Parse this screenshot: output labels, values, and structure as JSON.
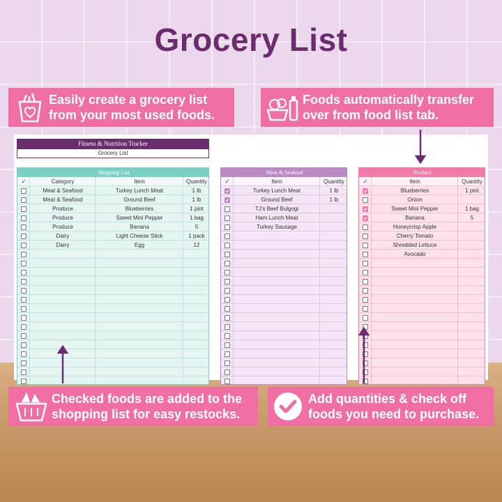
{
  "title": "Grocery List",
  "callouts": [
    {
      "lines": [
        "Easily create a grocery list",
        "from your most used foods."
      ]
    },
    {
      "lines": [
        "Foods automatically transfer",
        "over from food list tab."
      ]
    },
    {
      "lines": [
        "Checked foods are added to the",
        "shopping list for easy restocks."
      ]
    },
    {
      "lines": [
        "Add quantities & check off",
        "foods you need to purchase."
      ]
    }
  ],
  "sheet": {
    "header": "Fitness & Nutrition Tracker",
    "subheader": "Grocery List"
  },
  "tables": [
    {
      "title": "Shopping List",
      "columns": [
        "✓",
        "Category",
        "Item",
        "Quantity"
      ],
      "rows": [
        {
          "checked": false,
          "category": "Meat & Seafood",
          "item": "Turkey Lunch Meat",
          "quantity": "1 lb"
        },
        {
          "checked": false,
          "category": "Meat & Seafood",
          "item": "Ground Beef",
          "quantity": "1 lb"
        },
        {
          "checked": false,
          "category": "Produce",
          "item": "Blueberries",
          "quantity": "1 pint"
        },
        {
          "checked": false,
          "category": "Produce",
          "item": "Sweet Mini Pepper",
          "quantity": "1 bag"
        },
        {
          "checked": false,
          "category": "Produce",
          "item": "Banana",
          "quantity": "5"
        },
        {
          "checked": false,
          "category": "Dairy",
          "item": "Light Cheese Stick",
          "quantity": "1 pack"
        },
        {
          "checked": false,
          "category": "Dairy",
          "item": "Egg",
          "quantity": "12"
        }
      ]
    },
    {
      "title": "Meat & Seafood",
      "columns": [
        "✓",
        "Item",
        "Quantity"
      ],
      "rows": [
        {
          "checked": true,
          "item": "Turkey Lunch Meat",
          "quantity": "1 lb"
        },
        {
          "checked": true,
          "item": "Ground Beef",
          "quantity": "1 lb"
        },
        {
          "checked": false,
          "item": "TJ's Beef Bulgogi"
        },
        {
          "checked": false,
          "item": "Ham Lunch Meat"
        },
        {
          "checked": false,
          "item": "Turkey Sausage"
        }
      ]
    },
    {
      "title": "Produce",
      "columns": [
        "✓",
        "Item",
        "Quantity"
      ],
      "rows": [
        {
          "checked": true,
          "item": "Blueberries",
          "quantity": "1 pint"
        },
        {
          "checked": false,
          "item": "Onion"
        },
        {
          "checked": true,
          "item": "Sweet Mini Pepper",
          "quantity": "1 bag"
        },
        {
          "checked": true,
          "item": "Banana",
          "quantity": "5"
        },
        {
          "checked": false,
          "item": "Honeycrisp Apple"
        },
        {
          "checked": false,
          "item": "Cherry Tomato"
        },
        {
          "checked": false,
          "item": "Shredded Lettuce"
        },
        {
          "checked": false,
          "item": "Avocado"
        }
      ]
    }
  ]
}
